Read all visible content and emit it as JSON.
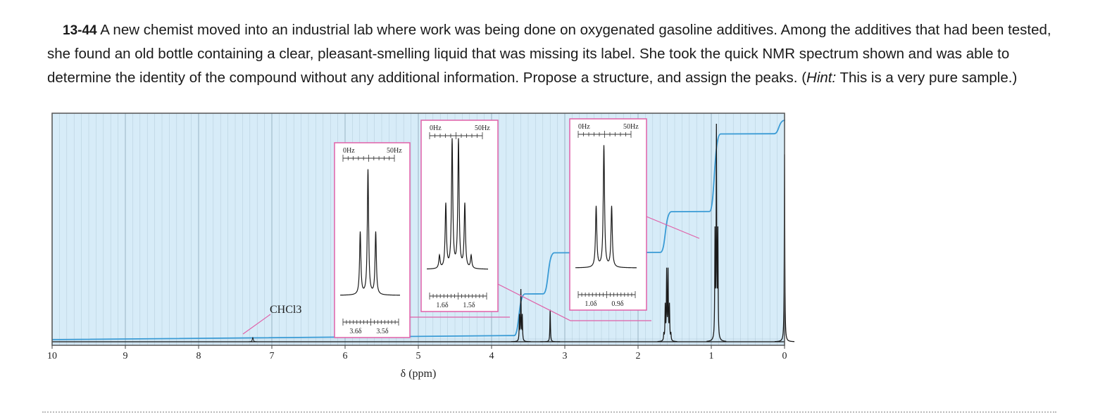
{
  "problem": {
    "number": "13-44",
    "text_part1": "A new chemist moved into an industrial lab where work was being done on oxygenated gasoline additives. Among the additives that had been tested, she found an old bottle containing a clear, pleasant-smelling liquid that was missing its label. She took the quick NMR spectrum shown and was able to determine the identity of the compound without any additional information. Propose a structure, and assign the peaks. (",
    "hint_label": "Hint:",
    "text_part2": " This is a very pure sample.)"
  },
  "chart_data": {
    "type": "line",
    "title": "",
    "xlabel": "δ (ppm)",
    "ylabel": "",
    "xlim": [
      10,
      0
    ],
    "x_reversed": true,
    "grid": true,
    "background_color": "#d7ecf8",
    "ticks": [
      "10",
      "9",
      "8",
      "7",
      "6",
      "5",
      "4",
      "3",
      "2",
      "1",
      "0"
    ],
    "tick_values": [
      10,
      9,
      8,
      7,
      6,
      5,
      4,
      3,
      2,
      1,
      0
    ],
    "annotation": "CHCl3",
    "annotation_shift": 7.26,
    "peaks": [
      {
        "shift": 3.6,
        "pattern": "triplet",
        "height": 0.22
      },
      {
        "shift": 3.2,
        "pattern": "singlet",
        "height": 0.14
      },
      {
        "shift": 1.6,
        "pattern": "sextet",
        "height": 0.3
      },
      {
        "shift": 0.93,
        "pattern": "triplet",
        "height": 0.91
      },
      {
        "shift": 0.0,
        "pattern": "singlet",
        "height": 0.82
      }
    ],
    "integral_steps": [
      {
        "shift": 3.6,
        "level": 0.2
      },
      {
        "shift": 3.2,
        "level": 0.38
      },
      {
        "shift": 1.6,
        "level": 0.56
      },
      {
        "shift": 0.93,
        "level": 0.9
      },
      {
        "shift": 0.05,
        "level": 0.96
      }
    ],
    "insets": [
      {
        "id": "inset-a",
        "hz_left": "0Hz",
        "hz_right": "50Hz",
        "ppm_left": "3.6δ",
        "ppm_right": "3.5δ",
        "pattern": "triplet"
      },
      {
        "id": "inset-b",
        "hz_left": "0Hz",
        "hz_right": "50Hz",
        "ppm_left": "1.6δ",
        "ppm_right": "1.5δ",
        "pattern": "sextet"
      },
      {
        "id": "inset-c",
        "hz_left": "0Hz",
        "hz_right": "50Hz",
        "ppm_left": "1.0δ",
        "ppm_right": "0.9δ",
        "pattern": "triplet"
      }
    ],
    "colors": {
      "frame": "#555555",
      "peaks": "#1a1a1a",
      "integral": "#3a9bd5",
      "inset_border": "#e060a8",
      "grid": "#9fb8c8"
    }
  }
}
